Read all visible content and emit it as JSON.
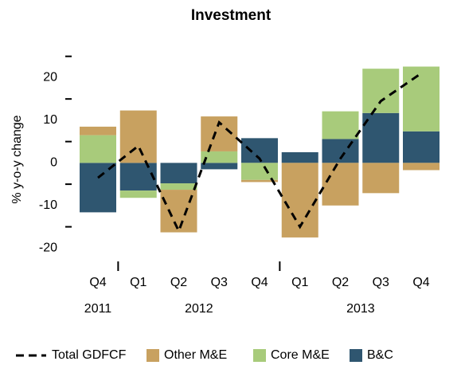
{
  "chart_data": {
    "type": "bar",
    "stacked": true,
    "title": "Investment",
    "y_label": "% y-o-y change",
    "categories": [
      "Q4",
      "Q1",
      "Q2",
      "Q3",
      "Q4",
      "Q1",
      "Q2",
      "Q3",
      "Q4"
    ],
    "years": [
      "2011",
      "2012",
      null,
      null,
      null,
      "2013",
      null,
      null,
      null
    ],
    "series": [
      {
        "name": "Total GDFCF",
        "type": "line",
        "dashed": true,
        "color": "#000000",
        "values": [
          -3.5,
          4,
          -16,
          9.5,
          1,
          -15,
          1,
          14.5,
          21
        ]
      },
      {
        "name": "Other M&E",
        "color": "#c8a160",
        "values": [
          2,
          12.3,
          -10,
          8.2,
          -0.5,
          -17.5,
          -10,
          -7.1,
          -1.7
        ]
      },
      {
        "name": "Core M&E",
        "color": "#a8cb7b",
        "values": [
          6.5,
          -1.7,
          -1.5,
          2.7,
          -4,
          0,
          6.5,
          10.4,
          15.2
        ]
      },
      {
        "name": "B&C",
        "color": "#2f5670",
        "values": [
          -11.6,
          -6.5,
          -4.8,
          -1.5,
          5.8,
          2.5,
          5.6,
          11.7,
          7.4
        ]
      }
    ],
    "ylim": [
      -22,
      27
    ],
    "yticks": [
      -20,
      -10,
      0,
      10,
      20
    ],
    "minor_yticks": [
      -15,
      -5,
      5,
      15,
      25
    ],
    "grid": false
  }
}
